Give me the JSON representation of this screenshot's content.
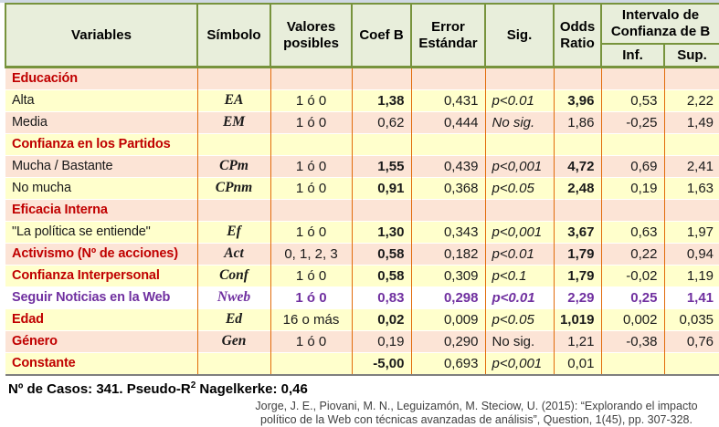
{
  "colors": {
    "header_bg": "#E8EEDB",
    "header_border_olive": "#77933C",
    "body_border_orange": "#E26B0A",
    "row_peach": "#FCE4D6",
    "row_yellow": "#FFFFCC",
    "category_red": "#C00000",
    "highlight_purple": "#7030A0",
    "bottom_border_gray": "#7F7F7F"
  },
  "table": {
    "header": {
      "variables": "Variables",
      "simbolo": "Símbolo",
      "valores": "Valores posibles",
      "coef": "Coef B",
      "error": "Error Estándar",
      "sig": "Sig.",
      "odds": "Odds Ratio",
      "intervalo": "Intervalo de Confianza de B",
      "inf": "Inf.",
      "sup": "Sup."
    },
    "rows": [
      {
        "label": "Educación",
        "label_style": "cat",
        "bg": "peach",
        "symbol": "",
        "valores": "",
        "coef": "",
        "error": "",
        "sig": "",
        "odds": "",
        "inf": "",
        "sup": ""
      },
      {
        "label": "Alta",
        "label_style": "plain",
        "bg": "yellow",
        "symbol": "EA",
        "valores": "1 ó 0",
        "coef": "1,38",
        "coef_bold": true,
        "error": "0,431",
        "sig": "p<0.01",
        "sig_italic": true,
        "odds": "3,96",
        "odds_bold": true,
        "inf": "0,53",
        "sup": "2,22"
      },
      {
        "label": "Media",
        "label_style": "plain",
        "bg": "peach",
        "symbol": "EM",
        "valores": "1 ó 0",
        "coef": "0,62",
        "error": "0,444",
        "sig": "No sig.",
        "sig_italic": true,
        "odds": "1,86",
        "inf": "-0,25",
        "sup": "1,49"
      },
      {
        "label": "Confianza en los Partidos",
        "label_style": "cat",
        "bg": "yellow",
        "symbol": "",
        "valores": "",
        "coef": "",
        "error": "",
        "sig": "",
        "odds": "",
        "inf": "",
        "sup": ""
      },
      {
        "label": "Mucha / Bastante",
        "label_style": "plain",
        "bg": "peach",
        "symbol": "CPm",
        "valores": "1 ó 0",
        "coef": "1,55",
        "coef_bold": true,
        "error": "0,439",
        "sig": "p<0,001",
        "sig_italic": true,
        "odds": "4,72",
        "odds_bold": true,
        "inf": "0,69",
        "sup": "2,41"
      },
      {
        "label": "No mucha",
        "label_style": "plain",
        "bg": "yellow",
        "symbol": "CPnm",
        "valores": "1 ó 0",
        "coef": "0,91",
        "coef_bold": true,
        "error": "0,368",
        "sig": "p<0.05",
        "sig_italic": true,
        "odds": "2,48",
        "odds_bold": true,
        "inf": "0,19",
        "sup": "1,63"
      },
      {
        "label": "Eficacia Interna",
        "label_style": "cat",
        "bg": "peach",
        "symbol": "",
        "valores": "",
        "coef": "",
        "error": "",
        "sig": "",
        "odds": "",
        "inf": "",
        "sup": ""
      },
      {
        "label": "\"La política se entiende\"",
        "label_style": "plain",
        "bg": "yellow",
        "symbol": "Ef",
        "valores": "1 ó 0",
        "coef": "1,30",
        "coef_bold": true,
        "error": "0,343",
        "sig": "p<0,001",
        "sig_italic": true,
        "odds": "3,67",
        "odds_bold": true,
        "inf": "0,63",
        "sup": "1,97"
      },
      {
        "label": "Activismo (Nº de acciones)",
        "label_style": "cat",
        "bg": "peach",
        "symbol": "Act",
        "valores": "0, 1, 2, 3",
        "coef": "0,58",
        "coef_bold": true,
        "error": "0,182",
        "sig": "p<0.01",
        "sig_italic": true,
        "odds": "1,79",
        "odds_bold": true,
        "inf": "0,22",
        "sup": "0,94"
      },
      {
        "label": "Confianza Interpersonal",
        "label_style": "cat",
        "bg": "yellow",
        "symbol": "Conf",
        "valores": "1 ó 0",
        "coef": "0,58",
        "coef_bold": true,
        "error": "0,309",
        "sig": "p<0.1",
        "sig_italic": true,
        "odds": "1,79",
        "odds_bold": true,
        "inf": "-0,02",
        "sup": "1,19"
      },
      {
        "label": "Seguir Noticias en la Web",
        "label_style": "pur",
        "bg": "white",
        "theme": "highlight",
        "symbol": "Nweb",
        "valores": "1 ó 0",
        "coef": "0,83",
        "coef_bold": true,
        "error": "0,298",
        "sig": "p<0.01",
        "sig_italic": true,
        "odds": "2,29",
        "odds_bold": true,
        "inf": "0,25",
        "sup": "1,41"
      },
      {
        "label": "Edad",
        "label_style": "cat",
        "bg": "yellow",
        "symbol": "Ed",
        "valores": "16 o más",
        "coef": "0,02",
        "coef_bold": true,
        "error": "0,009",
        "sig": "p<0.05",
        "sig_italic": true,
        "odds": "1,019",
        "odds_bold": true,
        "inf": "0,002",
        "sup": "0,035"
      },
      {
        "label": "Género",
        "label_style": "cat",
        "bg": "peach",
        "symbol": "Gen",
        "valores": "1 ó 0",
        "coef": "0,19",
        "error": "0,290",
        "sig": "No sig.",
        "odds": "1,21",
        "inf": "-0,38",
        "sup": "0,76"
      },
      {
        "label": "Constante",
        "label_style": "cat",
        "bg": "yellow",
        "symbol": "",
        "valores": "",
        "coef": "-5,00",
        "coef_bold": true,
        "error": "0,693",
        "sig": "p<0,001",
        "sig_italic": true,
        "odds": "0,01",
        "inf": "",
        "sup": ""
      }
    ]
  },
  "footer": {
    "stats_prefix": "Nº de Casos: 341. Pseudo-R",
    "stats_sup": "2",
    "stats_suffix": " Nagelkerke: 0,46",
    "citation_line1": "Jorge, J. E., Piovani, M. N., Leguizamón, M. Steciow, U. (2015): “Explorando el impacto",
    "citation_line2": "político de la Web con técnicas avanzadas de análisis”, Question, 1(45), pp. 307-328."
  },
  "chart_data": {
    "type": "table",
    "title": "Regresión logística: impacto político de la Web",
    "columns": [
      "Variables",
      "Símbolo",
      "Valores posibles",
      "Coef B",
      "Error Estándar",
      "Sig.",
      "Odds Ratio",
      "Intervalo de Confianza de B - Inf.",
      "Intervalo de Confianza de B - Sup."
    ],
    "rows": [
      [
        "Educación",
        "",
        "",
        "",
        "",
        "",
        "",
        "",
        ""
      ],
      [
        "Alta",
        "EA",
        "1 ó 0",
        "1,38",
        "0,431",
        "p<0.01",
        "3,96",
        "0,53",
        "2,22"
      ],
      [
        "Media",
        "EM",
        "1 ó 0",
        "0,62",
        "0,444",
        "No sig.",
        "1,86",
        "-0,25",
        "1,49"
      ],
      [
        "Confianza en los Partidos",
        "",
        "",
        "",
        "",
        "",
        "",
        "",
        ""
      ],
      [
        "Mucha / Bastante",
        "CPm",
        "1 ó 0",
        "1,55",
        "0,439",
        "p<0,001",
        "4,72",
        "0,69",
        "2,41"
      ],
      [
        "No mucha",
        "CPnm",
        "1 ó 0",
        "0,91",
        "0,368",
        "p<0.05",
        "2,48",
        "0,19",
        "1,63"
      ],
      [
        "Eficacia Interna",
        "",
        "",
        "",
        "",
        "",
        "",
        "",
        ""
      ],
      [
        "\"La política se entiende\"",
        "Ef",
        "1 ó 0",
        "1,30",
        "0,343",
        "p<0,001",
        "3,67",
        "0,63",
        "1,97"
      ],
      [
        "Activismo (Nº de acciones)",
        "Act",
        "0, 1, 2, 3",
        "0,58",
        "0,182",
        "p<0.01",
        "1,79",
        "0,22",
        "0,94"
      ],
      [
        "Confianza Interpersonal",
        "Conf",
        "1 ó 0",
        "0,58",
        "0,309",
        "p<0.1",
        "1,79",
        "-0,02",
        "1,19"
      ],
      [
        "Seguir Noticias en la Web",
        "Nweb",
        "1 ó 0",
        "0,83",
        "0,298",
        "p<0.01",
        "2,29",
        "0,25",
        "1,41"
      ],
      [
        "Edad",
        "Ed",
        "16 o más",
        "0,02",
        "0,009",
        "p<0.05",
        "1,019",
        "0,002",
        "0,035"
      ],
      [
        "Género",
        "Gen",
        "1 ó 0",
        "0,19",
        "0,290",
        "No sig.",
        "1,21",
        "-0,38",
        "0,76"
      ],
      [
        "Constante",
        "",
        "",
        "-5,00",
        "0,693",
        "p<0,001",
        "0,01",
        "",
        ""
      ]
    ],
    "footnote": "Nº de Casos: 341. Pseudo-R2 Nagelkerke: 0,46"
  }
}
